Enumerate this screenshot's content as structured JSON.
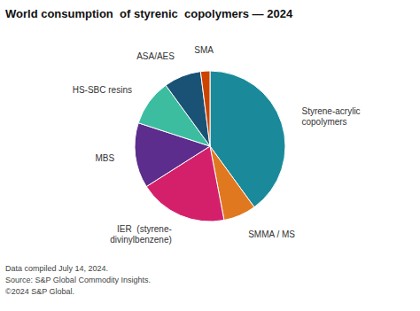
{
  "chart_data": {
    "type": "pie",
    "title": "World consumption  of styrenic  copolymers — 2024",
    "categories": [
      "Styrene-acrylic\ncopolymers",
      "SMMA / MS",
      "IER  (styrene-\ndivinylbenzene)",
      "MBS",
      "HS-SBC resins",
      "ASA/AES",
      "SMA"
    ],
    "values": [
      40,
      7,
      19,
      14,
      10,
      8,
      2
    ],
    "colors": [
      "#1a8a9a",
      "#e07820",
      "#d4206a",
      "#5c2d8c",
      "#3dbda0",
      "#1a5276",
      "#cc4400"
    ],
    "annotations": [
      "Data compiled July 14, 2024.",
      "Source: S&P Global Commodity Insights.",
      "©2024 S&P Global."
    ]
  }
}
